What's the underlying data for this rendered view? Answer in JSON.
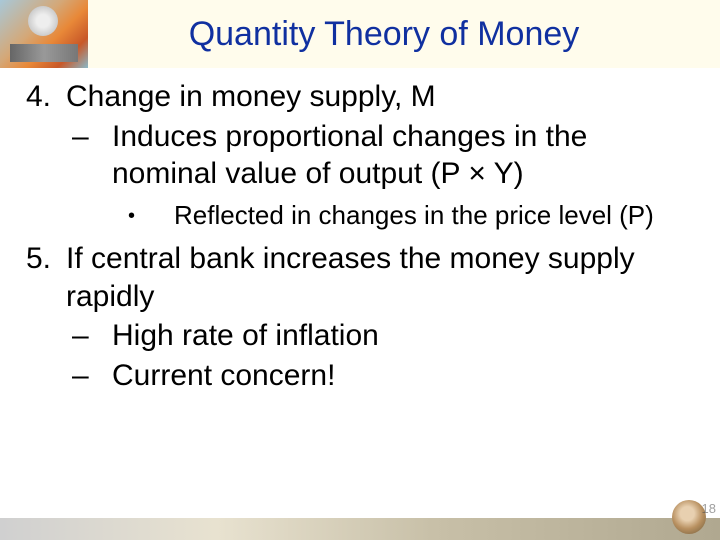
{
  "title": "Quantity Theory of Money",
  "title_color": "#1030a0",
  "title_band_bg": "#fffcec",
  "body_bg": "#ffffff",
  "text_color": "#000000",
  "footer_gradient": [
    "#d0d0d0",
    "#e8e2d0",
    "#c8c0a8",
    "#b0a890"
  ],
  "page_number": "18",
  "fontsize_title": 34,
  "fontsize_num": 30,
  "fontsize_dash": 30,
  "fontsize_bullet": 26,
  "items": {
    "p4": {
      "marker": "4.",
      "text": "Change in money supply, M",
      "sub": [
        {
          "marker": "–",
          "text": "Induces proportional changes in the nominal value of output (P × Y)",
          "sub": [
            {
              "marker": "•",
              "text": "Reflected in changes in the price level (P)"
            }
          ]
        }
      ]
    },
    "p5": {
      "marker": "5.",
      "text": "If central bank increases the money supply rapidly",
      "sub": [
        {
          "marker": "–",
          "text": "High rate of inflation"
        },
        {
          "marker": "–",
          "text": "Current concern!"
        }
      ]
    }
  }
}
